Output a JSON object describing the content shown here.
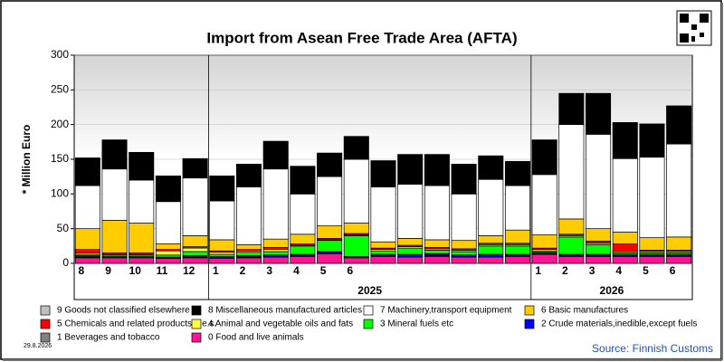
{
  "chart_data": {
    "type": "bar",
    "stacked": true,
    "title": "Import from Asean Free Trade Area (AFTA)",
    "y_label": "* Million Euro",
    "date": "29.8.2026",
    "source": "Source: Finnish Customs",
    "categories": [
      "8",
      "9",
      "10",
      "11",
      "12",
      "1",
      "2",
      "3",
      "4",
      "5",
      "6",
      null,
      null,
      null,
      null,
      null,
      null,
      "1",
      "2",
      "3",
      "4",
      "5",
      "6"
    ],
    "years": [
      "2025",
      "2026"
    ],
    "ylim": [
      0,
      300
    ],
    "yticks": [
      0,
      50,
      100,
      150,
      200,
      250,
      300
    ],
    "grid": true,
    "series": [
      {
        "name": "0 Food and live animals",
        "color": "#ff1493",
        "values": [
          8,
          8,
          8,
          7,
          8,
          7,
          8,
          9,
          10,
          14,
          8,
          10,
          9,
          10,
          9,
          9,
          10,
          13,
          10,
          10,
          10,
          10,
          10
        ]
      },
      {
        "name": "1 Beverages and tobacco",
        "color": "#808080",
        "values": [
          1,
          1,
          1,
          1,
          1,
          1,
          1,
          1,
          1,
          1,
          1,
          1,
          1,
          1,
          1,
          1,
          1,
          1,
          1,
          1,
          1,
          1,
          1
        ]
      },
      {
        "name": "2 Crude materials,inedible,except fuels",
        "color": "#0000ff",
        "values": [
          2,
          1,
          1,
          1,
          2,
          2,
          2,
          2,
          2,
          2,
          1,
          2,
          3,
          3,
          2,
          3,
          2,
          2,
          2,
          2,
          2,
          2,
          2
        ]
      },
      {
        "name": "3 Mineral fuels etc",
        "color": "#00ff00",
        "values": [
          2,
          2,
          2,
          3,
          6,
          3,
          5,
          5,
          12,
          16,
          30,
          5,
          9,
          5,
          5,
          12,
          12,
          2,
          25,
          14,
          2,
          2,
          2
        ]
      },
      {
        "name": "4 Animal and vegetable oils and fats",
        "color": "#ffff40",
        "values": [
          2,
          1,
          1,
          6,
          5,
          3,
          2,
          3,
          1,
          1,
          1,
          2,
          2,
          2,
          2,
          2,
          2,
          2,
          2,
          2,
          2,
          2,
          2
        ]
      },
      {
        "name": "5 Chemicals and related products,n.e.s.",
        "color": "#ff0000",
        "values": [
          5,
          2,
          2,
          2,
          2,
          2,
          2,
          3,
          2,
          2,
          2,
          2,
          2,
          2,
          2,
          2,
          2,
          2,
          2,
          3,
          11,
          2,
          2
        ]
      },
      {
        "name": "6 Basic manufactures",
        "color": "#ffcc00",
        "values": [
          30,
          47,
          43,
          8,
          16,
          16,
          7,
          12,
          14,
          18,
          15,
          9,
          10,
          11,
          12,
          11,
          19,
          19,
          22,
          18,
          17,
          18,
          19
        ]
      },
      {
        "name": "7 Machinery,transport equipment",
        "color": "#ffffff",
        "values": [
          62,
          74,
          62,
          61,
          83,
          56,
          83,
          101,
          58,
          71,
          92,
          79,
          78,
          78,
          67,
          81,
          64,
          87,
          136,
          136,
          106,
          116,
          134
        ]
      },
      {
        "name": "8 Miscellaneous manufactured articles",
        "color": "#000000",
        "values": [
          40,
          42,
          40,
          37,
          28,
          36,
          33,
          40,
          40,
          34,
          33,
          38,
          43,
          45,
          43,
          34,
          35,
          50,
          45,
          59,
          52,
          48,
          55
        ]
      },
      {
        "name": "9 Goods not classified elsewhere",
        "color": "#c0c0c0",
        "values": [
          0,
          0,
          0,
          0,
          0,
          0,
          0,
          0,
          0,
          0,
          0,
          0,
          0,
          0,
          0,
          0,
          0,
          0,
          0,
          0,
          0,
          0,
          0
        ]
      }
    ],
    "legend_order": [
      9,
      8,
      7,
      6,
      5,
      4,
      3,
      2,
      1,
      0
    ]
  }
}
